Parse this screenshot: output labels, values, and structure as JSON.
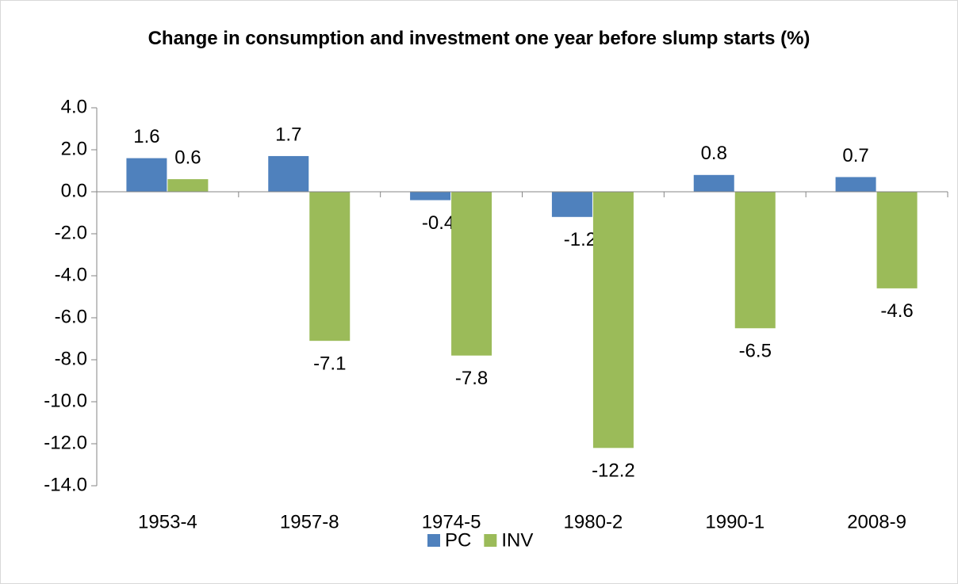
{
  "chart_data": {
    "type": "bar",
    "title": "Change in consumption and investment one year before slump starts (%)",
    "categories": [
      "1953-4",
      "1957-8",
      "1974-5",
      "1980-2",
      "1990-1",
      "2008-9"
    ],
    "series": [
      {
        "name": "PC",
        "color": "#4f81bd",
        "values": [
          1.6,
          1.7,
          -0.4,
          -1.2,
          0.8,
          0.7
        ]
      },
      {
        "name": "INV",
        "color": "#9bbb59",
        "values": [
          0.6,
          -7.1,
          -7.8,
          -12.2,
          -6.5,
          -4.6
        ]
      }
    ],
    "ylim": [
      -14,
      4
    ],
    "yticks": [
      {
        "value": -14,
        "label": "-14.0"
      },
      {
        "value": -12,
        "label": "-12.0"
      },
      {
        "value": -10,
        "label": "-10.0"
      },
      {
        "value": -8,
        "label": "-8.0"
      },
      {
        "value": -6,
        "label": "-6.0"
      },
      {
        "value": -4,
        "label": "-4.0"
      },
      {
        "value": -2,
        "label": "-2.0"
      },
      {
        "value": 0,
        "label": "0.0"
      },
      {
        "value": 2,
        "label": "2.0"
      },
      {
        "value": 4,
        "label": "4.0"
      }
    ],
    "grid": false,
    "legend": "bottom"
  }
}
